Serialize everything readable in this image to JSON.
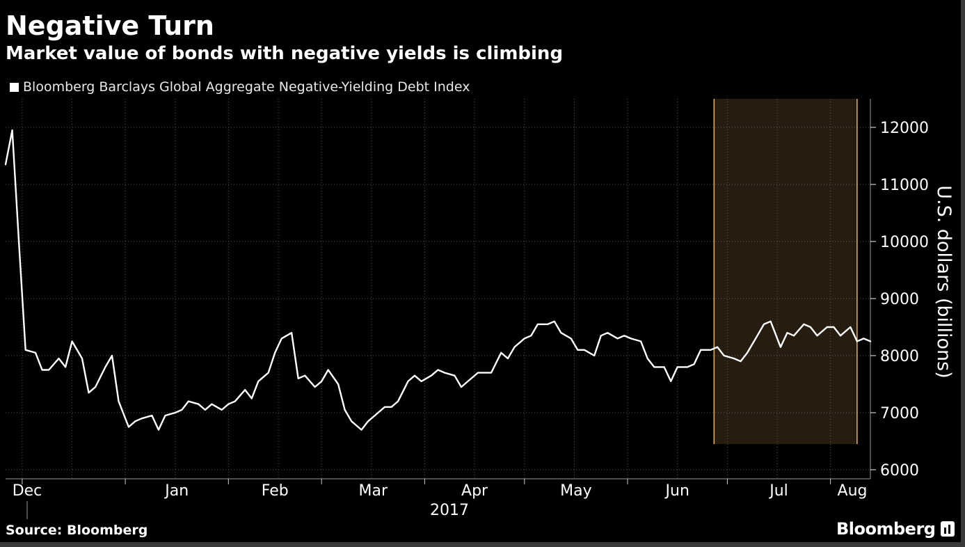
{
  "header": {
    "title": "Negative Turn",
    "subtitle": "Market value of bonds with negative yields is climbing"
  },
  "footer": {
    "source": "Source: Bloomberg",
    "brand": "Bloomberg"
  },
  "colors": {
    "background": "#000000",
    "line": "#ffffff",
    "highlight_fill": "#261d10",
    "highlight_border": "#e3b45b",
    "grid": "#5a5a5a",
    "text": "#ffffff"
  },
  "chart_data": {
    "type": "line",
    "title": "Negative Turn",
    "subtitle": "Market value of bonds with negative yields is climbing",
    "ylabel": "U.S. dollars (billions)",
    "ylim": [
      6000,
      12500
    ],
    "yticks": [
      6000,
      7000,
      8000,
      9000,
      10000,
      11000,
      12000
    ],
    "ytick_labels": [
      "6000",
      "7000",
      "8000",
      "9000",
      "10000",
      "11000",
      "12000"
    ],
    "xlim": [
      "2016-11-26",
      "2017-08-13"
    ],
    "xticks": [
      {
        "label": "Dec",
        "date": "2016-12-01"
      },
      {
        "label": "Jan",
        "date": "2017-01-01"
      },
      {
        "label": "Feb",
        "date": "2017-02-01"
      },
      {
        "label": "Mar",
        "date": "2017-03-01"
      },
      {
        "label": "Apr",
        "date": "2017-04-01"
      },
      {
        "label": "May",
        "date": "2017-05-01"
      },
      {
        "label": "Jun",
        "date": "2017-06-01"
      },
      {
        "label": "Jul",
        "date": "2017-07-01"
      },
      {
        "label": "Aug",
        "date": "2017-08-01"
      }
    ],
    "year_label": "2017",
    "grid": true,
    "legend": "top-left",
    "highlight": {
      "start": "2017-06-27",
      "end": "2017-08-09",
      "ymin": 6450
    },
    "series": [
      {
        "name": "Bloomberg Barclays Global Aggregate Negative-Yielding Debt Index",
        "points": [
          [
            "2016-11-26",
            11350
          ],
          [
            "2016-11-28",
            11950
          ],
          [
            "2016-11-30",
            10000
          ],
          [
            "2016-12-02",
            8100
          ],
          [
            "2016-12-05",
            8050
          ],
          [
            "2016-12-07",
            7750
          ],
          [
            "2016-12-09",
            7750
          ],
          [
            "2016-12-12",
            7950
          ],
          [
            "2016-12-14",
            7800
          ],
          [
            "2016-12-16",
            8250
          ],
          [
            "2016-12-19",
            7950
          ],
          [
            "2016-12-21",
            7350
          ],
          [
            "2016-12-23",
            7450
          ],
          [
            "2016-12-26",
            7800
          ],
          [
            "2016-12-28",
            8000
          ],
          [
            "2016-12-30",
            7200
          ],
          [
            "2017-01-02",
            6750
          ],
          [
            "2017-01-04",
            6850
          ],
          [
            "2017-01-06",
            6900
          ],
          [
            "2017-01-09",
            6950
          ],
          [
            "2017-01-11",
            6700
          ],
          [
            "2017-01-13",
            6950
          ],
          [
            "2017-01-16",
            7000
          ],
          [
            "2017-01-18",
            7050
          ],
          [
            "2017-01-20",
            7200
          ],
          [
            "2017-01-23",
            7150
          ],
          [
            "2017-01-25",
            7050
          ],
          [
            "2017-01-27",
            7150
          ],
          [
            "2017-01-30",
            7050
          ],
          [
            "2017-02-01",
            7150
          ],
          [
            "2017-02-03",
            7200
          ],
          [
            "2017-02-06",
            7400
          ],
          [
            "2017-02-08",
            7250
          ],
          [
            "2017-02-10",
            7550
          ],
          [
            "2017-02-13",
            7700
          ],
          [
            "2017-02-15",
            8050
          ],
          [
            "2017-02-17",
            8300
          ],
          [
            "2017-02-20",
            8400
          ],
          [
            "2017-02-22",
            7600
          ],
          [
            "2017-02-24",
            7650
          ],
          [
            "2017-02-27",
            7450
          ],
          [
            "2017-03-01",
            7550
          ],
          [
            "2017-03-03",
            7750
          ],
          [
            "2017-03-06",
            7500
          ],
          [
            "2017-03-08",
            7050
          ],
          [
            "2017-03-10",
            6850
          ],
          [
            "2017-03-13",
            6700
          ],
          [
            "2017-03-15",
            6850
          ],
          [
            "2017-03-17",
            6950
          ],
          [
            "2017-03-20",
            7100
          ],
          [
            "2017-03-22",
            7100
          ],
          [
            "2017-03-24",
            7200
          ],
          [
            "2017-03-27",
            7550
          ],
          [
            "2017-03-29",
            7650
          ],
          [
            "2017-03-31",
            7550
          ],
          [
            "2017-04-03",
            7650
          ],
          [
            "2017-04-05",
            7750
          ],
          [
            "2017-04-07",
            7700
          ],
          [
            "2017-04-10",
            7650
          ],
          [
            "2017-04-12",
            7450
          ],
          [
            "2017-04-14",
            7550
          ],
          [
            "2017-04-17",
            7700
          ],
          [
            "2017-04-19",
            7700
          ],
          [
            "2017-04-21",
            7700
          ],
          [
            "2017-04-24",
            8050
          ],
          [
            "2017-04-26",
            7950
          ],
          [
            "2017-04-28",
            8150
          ],
          [
            "2017-05-01",
            8300
          ],
          [
            "2017-05-03",
            8350
          ],
          [
            "2017-05-05",
            8550
          ],
          [
            "2017-05-08",
            8550
          ],
          [
            "2017-05-10",
            8600
          ],
          [
            "2017-05-12",
            8400
          ],
          [
            "2017-05-15",
            8300
          ],
          [
            "2017-05-17",
            8100
          ],
          [
            "2017-05-19",
            8100
          ],
          [
            "2017-05-22",
            8000
          ],
          [
            "2017-05-24",
            8350
          ],
          [
            "2017-05-26",
            8400
          ],
          [
            "2017-05-29",
            8300
          ],
          [
            "2017-05-31",
            8350
          ],
          [
            "2017-06-02",
            8300
          ],
          [
            "2017-06-05",
            8250
          ],
          [
            "2017-06-07",
            7950
          ],
          [
            "2017-06-09",
            7800
          ],
          [
            "2017-06-12",
            7800
          ],
          [
            "2017-06-14",
            7550
          ],
          [
            "2017-06-16",
            7800
          ],
          [
            "2017-06-19",
            7800
          ],
          [
            "2017-06-21",
            7850
          ],
          [
            "2017-06-23",
            8100
          ],
          [
            "2017-06-26",
            8100
          ],
          [
            "2017-06-28",
            8150
          ],
          [
            "2017-06-30",
            8000
          ],
          [
            "2017-07-03",
            7950
          ],
          [
            "2017-07-05",
            7900
          ],
          [
            "2017-07-07",
            8050
          ],
          [
            "2017-07-10",
            8350
          ],
          [
            "2017-07-12",
            8550
          ],
          [
            "2017-07-14",
            8600
          ],
          [
            "2017-07-17",
            8150
          ],
          [
            "2017-07-19",
            8400
          ],
          [
            "2017-07-21",
            8350
          ],
          [
            "2017-07-24",
            8550
          ],
          [
            "2017-07-26",
            8500
          ],
          [
            "2017-07-28",
            8350
          ],
          [
            "2017-07-31",
            8500
          ],
          [
            "2017-08-02",
            8500
          ],
          [
            "2017-08-04",
            8350
          ],
          [
            "2017-08-07",
            8500
          ],
          [
            "2017-08-09",
            8250
          ],
          [
            "2017-08-11",
            8300
          ],
          [
            "2017-08-13",
            8250
          ]
        ]
      }
    ]
  }
}
